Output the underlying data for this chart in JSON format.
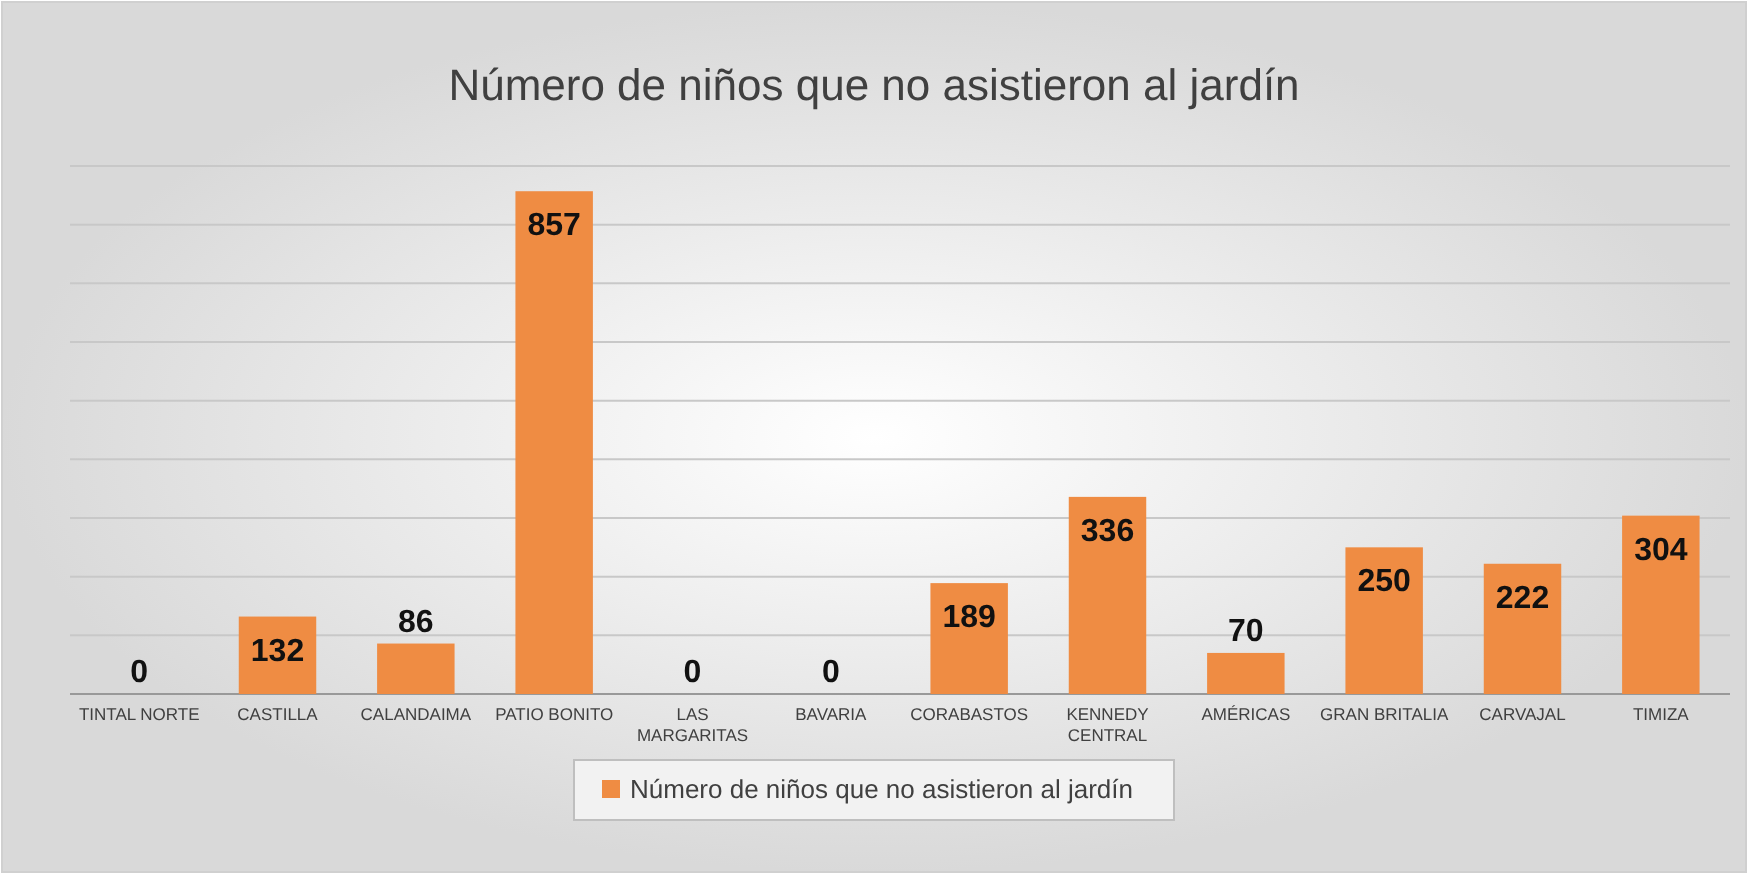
{
  "chart_data": {
    "type": "bar",
    "title": "Número de niños que no asistieron al jardín",
    "categories": [
      "TINTAL NORTE",
      "CASTILLA",
      "CALANDAIMA",
      "PATIO BONITO",
      "LAS MARGARITAS",
      "BAVARIA",
      "CORABASTOS",
      "KENNEDY CENTRAL",
      "AMÉRICAS",
      "GRAN BRITALIA",
      "CARVAJAL",
      "TIMIZA"
    ],
    "series": [
      {
        "name": "Número de niños que no asistieron al jardín",
        "color": "#ef8c43",
        "values": [
          0,
          132,
          86,
          857,
          0,
          0,
          189,
          336,
          70,
          250,
          222,
          304
        ]
      }
    ],
    "ylim": [
      0,
      900
    ],
    "yticks": [
      {
        "value": 0,
        "label": null
      },
      {
        "value": 100,
        "label": null
      },
      {
        "value": 200,
        "label": null
      },
      {
        "value": 300,
        "label": null
      },
      {
        "value": 400,
        "label": null
      },
      {
        "value": 500,
        "label": null
      },
      {
        "value": 600,
        "label": null
      },
      {
        "value": 700,
        "label": null
      },
      {
        "value": 800,
        "label": null
      },
      {
        "value": 900,
        "label": null
      }
    ],
    "tick_labels": "x",
    "grid": "y",
    "data_labels": true,
    "legend": "bottom"
  }
}
